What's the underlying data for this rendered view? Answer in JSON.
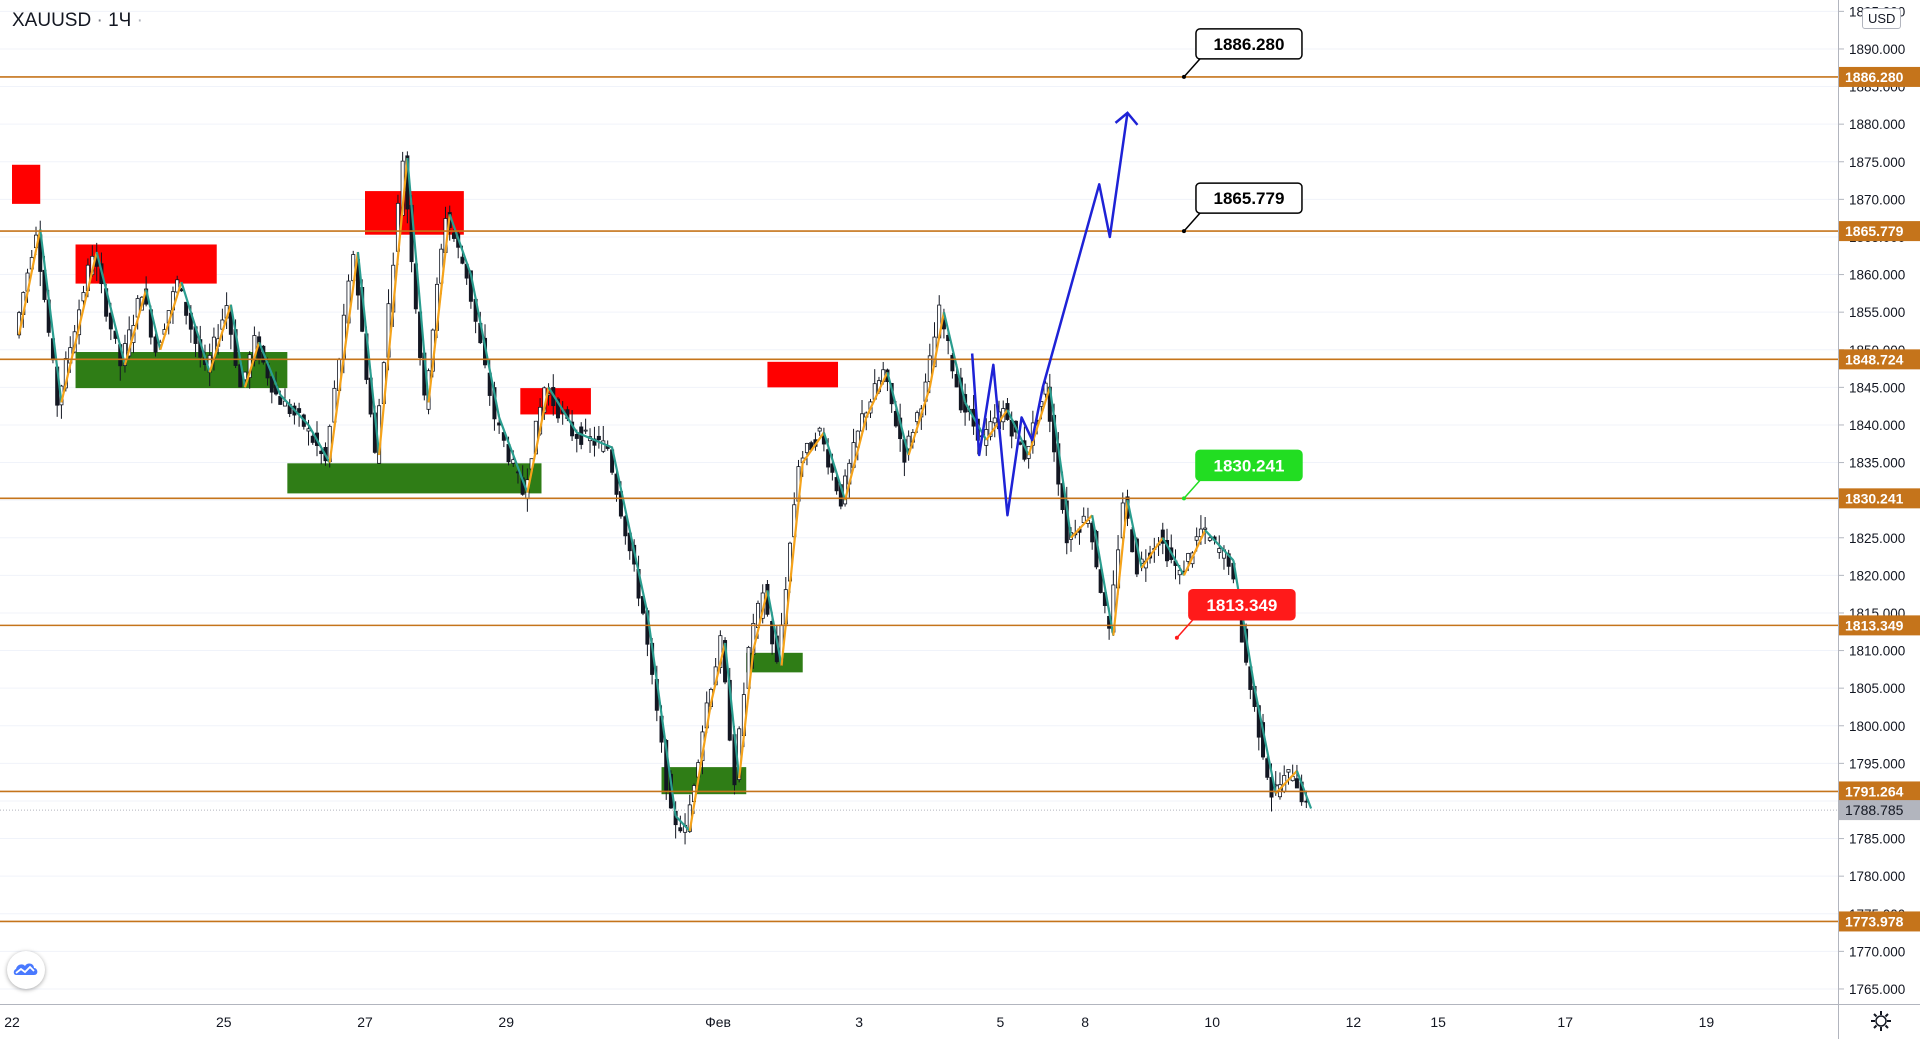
{
  "header": {
    "symbol": "XAUUSD",
    "interval": "1Ч",
    "separator": "·",
    "currency": "USD"
  },
  "icons": {
    "settings": "gear-icon",
    "logo": "tradingview-cloud-icon"
  },
  "colors": {
    "level_line": "#c5741b",
    "level_label_bg": "#c5741b",
    "supply_zone": "#ff0000",
    "demand_zone": "#2f7d16",
    "zigzag_up": "#f5a31a",
    "zigzag_down": "#2a9d8f",
    "forecast": "#1e22d6",
    "bull_candle": "#ffffff",
    "bear_candle": "#131722",
    "current_price_bg": "#b2b5be",
    "callout_green": "#22dd22",
    "callout_red": "#ff1a1a"
  },
  "chart_data": {
    "type": "candlestick",
    "symbol": "XAUUSD",
    "timeframe": "1Ч",
    "currency": "USD",
    "ylim": [
      1763.0,
      1897.0
    ],
    "x_day_range": [
      22,
      41.2
    ],
    "y_ticks": [
      1765,
      1770,
      1775,
      1780,
      1785,
      1790,
      1795,
      1800,
      1805,
      1810,
      1815,
      1820,
      1825,
      1830,
      1835,
      1840,
      1845,
      1850,
      1855,
      1860,
      1865,
      1870,
      1875,
      1880,
      1885,
      1890,
      1895
    ],
    "y_tick_labels": [
      "1765.000",
      "1770.000",
      "1775.000",
      "1780.000",
      "1785.000",
      "1790.000",
      "1795.000",
      "1800.000",
      "1805.000",
      "1810.000",
      "1815.000",
      "1820.000",
      "1825.000",
      "1830.000",
      "1835.000",
      "1840.000",
      "1845.000",
      "1850.000",
      "1855.000",
      "1860.000",
      "1865.000",
      "1870.000",
      "1875.000",
      "1880.000",
      "1885.000",
      "1890.000",
      "1895.000"
    ],
    "x_ticks": [
      {
        "label": "22",
        "day": 22
      },
      {
        "label": "25",
        "day": 25
      },
      {
        "label": "27",
        "day": 27
      },
      {
        "label": "29",
        "day": 29
      },
      {
        "label": "Фев",
        "day": 32
      },
      {
        "label": "3",
        "day": 34
      },
      {
        "label": "5",
        "day": 36
      },
      {
        "label": "8",
        "day": 37.2
      },
      {
        "label": "10",
        "day": 39
      },
      {
        "label": "12",
        "day": 41
      },
      {
        "label": "15",
        "day": 42.2
      },
      {
        "label": "17",
        "day": 44
      },
      {
        "label": "19",
        "day": 46
      }
    ],
    "levels": [
      {
        "value": 1886.28,
        "label": "1886.280"
      },
      {
        "value": 1865.779,
        "label": "1865.779"
      },
      {
        "value": 1848.724,
        "label": "1848.724"
      },
      {
        "value": 1830.241,
        "label": "1830.241"
      },
      {
        "value": 1813.349,
        "label": "1813.349"
      },
      {
        "value": 1791.264,
        "label": "1791.264"
      },
      {
        "value": 1773.978,
        "label": "1773.978"
      }
    ],
    "current_price": {
      "value": 1788.785,
      "label": "1788.785"
    },
    "supply_zones": [
      {
        "x0": 22.0,
        "x1": 22.4,
        "y0": 1869.4,
        "y1": 1874.6
      },
      {
        "x0": 22.9,
        "x1": 24.9,
        "y0": 1858.8,
        "y1": 1864.0
      },
      {
        "x0": 27.0,
        "x1": 28.4,
        "y0": 1865.3,
        "y1": 1871.1
      },
      {
        "x0": 29.2,
        "x1": 30.2,
        "y0": 1841.4,
        "y1": 1844.9
      },
      {
        "x0": 32.7,
        "x1": 33.7,
        "y0": 1845.0,
        "y1": 1848.4
      }
    ],
    "demand_zones": [
      {
        "x0": 22.9,
        "x1": 25.9,
        "y0": 1844.9,
        "y1": 1849.7
      },
      {
        "x0": 25.9,
        "x1": 29.5,
        "y0": 1830.9,
        "y1": 1834.9
      },
      {
        "x0": 31.2,
        "x1": 32.4,
        "y0": 1790.9,
        "y1": 1794.5
      },
      {
        "x0": 32.4,
        "x1": 33.2,
        "y0": 1807.1,
        "y1": 1809.7
      }
    ],
    "callouts": [
      {
        "label": "1886.280",
        "style": "black",
        "anchor_day": 38.6,
        "anchor_value": 1886.28
      },
      {
        "label": "1865.779",
        "style": "black",
        "anchor_day": 38.6,
        "anchor_value": 1865.78
      },
      {
        "label": "1830.241",
        "style": "green",
        "anchor_day": 38.6,
        "anchor_value": 1830.24
      },
      {
        "label": "1813.349",
        "style": "red",
        "anchor_day": 38.5,
        "anchor_value": 1811.7
      }
    ],
    "forecast_path": [
      {
        "day": 35.6,
        "value": 1849.5
      },
      {
        "day": 35.7,
        "value": 1836.0
      },
      {
        "day": 35.9,
        "value": 1848.0
      },
      {
        "day": 36.1,
        "value": 1828.0
      },
      {
        "day": 36.3,
        "value": 1841.0
      },
      {
        "day": 36.45,
        "value": 1838.0
      },
      {
        "day": 36.6,
        "value": 1845.0
      },
      {
        "day": 37.4,
        "value": 1872.0
      },
      {
        "day": 37.55,
        "value": 1865.0
      },
      {
        "day": 37.8,
        "value": 1881.5
      }
    ],
    "zigzag": [
      [
        22.1,
        1852.0
      ],
      [
        22.4,
        1866.0
      ],
      [
        22.7,
        1843.0
      ],
      [
        23.2,
        1863.0
      ],
      [
        23.6,
        1848.0
      ],
      [
        23.9,
        1858.0
      ],
      [
        24.1,
        1850.0
      ],
      [
        24.4,
        1859.0
      ],
      [
        24.8,
        1847.0
      ],
      [
        25.1,
        1856.0
      ],
      [
        25.3,
        1845.0
      ],
      [
        25.5,
        1851.0
      ],
      [
        25.8,
        1844.0
      ],
      [
        26.2,
        1840.0
      ],
      [
        26.5,
        1835.0
      ],
      [
        26.9,
        1863.0
      ],
      [
        27.2,
        1836.0
      ],
      [
        27.6,
        1875.5
      ],
      [
        27.9,
        1843.0
      ],
      [
        28.2,
        1868.0
      ],
      [
        28.5,
        1860.0
      ],
      [
        28.9,
        1841.0
      ],
      [
        29.3,
        1831.0
      ],
      [
        29.6,
        1845.0
      ],
      [
        30.0,
        1839.0
      ],
      [
        30.5,
        1837.0
      ],
      [
        31.0,
        1815.0
      ],
      [
        31.4,
        1788.0
      ],
      [
        31.6,
        1786.0
      ],
      [
        31.9,
        1803.0
      ],
      [
        32.1,
        1811.0
      ],
      [
        32.3,
        1793.0
      ],
      [
        32.5,
        1810.0
      ],
      [
        32.7,
        1818.0
      ],
      [
        32.9,
        1808.0
      ],
      [
        33.2,
        1835.0
      ],
      [
        33.5,
        1839.0
      ],
      [
        33.8,
        1830.0
      ],
      [
        34.1,
        1841.0
      ],
      [
        34.4,
        1847.0
      ],
      [
        34.7,
        1836.0
      ],
      [
        35.0,
        1845.0
      ],
      [
        35.2,
        1855.0
      ],
      [
        35.5,
        1843.0
      ],
      [
        35.8,
        1838.0
      ],
      [
        36.1,
        1842.0
      ],
      [
        36.4,
        1836.0
      ],
      [
        36.7,
        1845.0
      ],
      [
        37.0,
        1825.0
      ],
      [
        37.3,
        1828.0
      ],
      [
        37.6,
        1812.0
      ],
      [
        37.8,
        1830.0
      ],
      [
        38.0,
        1821.0
      ],
      [
        38.3,
        1825.0
      ],
      [
        38.6,
        1820.0
      ],
      [
        38.9,
        1826.0
      ],
      [
        39.3,
        1822.0
      ],
      [
        39.6,
        1805.0
      ],
      [
        39.9,
        1791.0
      ],
      [
        40.2,
        1794.0
      ],
      [
        40.4,
        1789.0
      ]
    ]
  }
}
